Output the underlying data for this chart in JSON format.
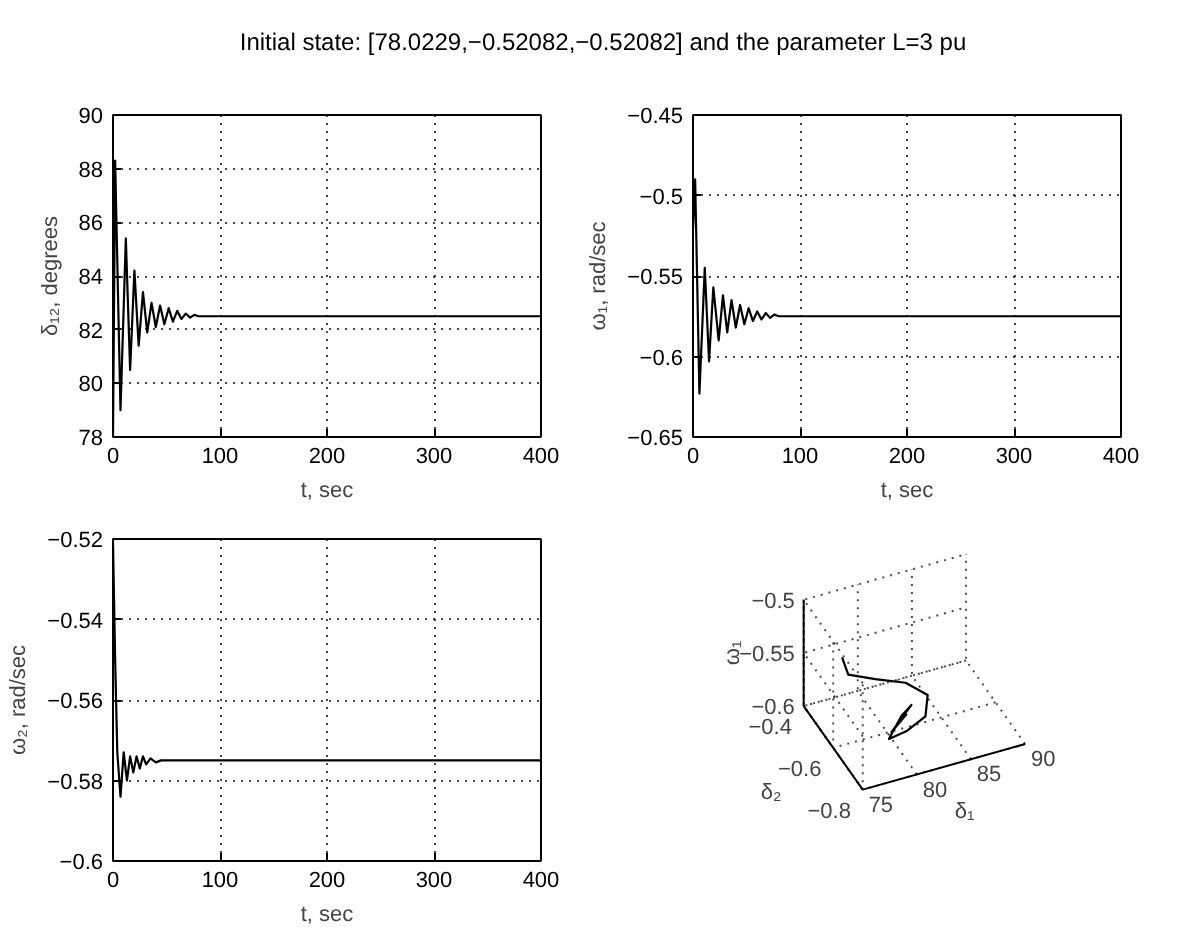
{
  "chart_data": [
    {
      "type": "line",
      "title": "Initial state: [78.0229,−0.52082,−0.52082] and the parameter L=3 pu",
      "xlabel": "t, sec",
      "ylabel": "δ₁₂, degrees",
      "xlim": [
        0,
        400
      ],
      "ylim": [
        78,
        90
      ],
      "xticks": [
        0,
        100,
        200,
        300,
        400
      ],
      "yticks": [
        78,
        80,
        82,
        84,
        86,
        88,
        90
      ],
      "grid": true,
      "series": [
        {
          "color": "#000000",
          "x": [
            0,
            2,
            7,
            12,
            16,
            20,
            24,
            28,
            32,
            36,
            40,
            44,
            48,
            52,
            56,
            60,
            64,
            68,
            72,
            76,
            80,
            90,
            400
          ],
          "values": [
            78.0,
            88.3,
            79.0,
            85.4,
            80.5,
            84.2,
            81.4,
            83.4,
            81.9,
            83.0,
            82.1,
            82.9,
            82.2,
            82.8,
            82.3,
            82.7,
            82.4,
            82.6,
            82.45,
            82.55,
            82.5,
            82.5,
            82.5
          ]
        }
      ]
    },
    {
      "type": "line",
      "xlabel": "t, sec",
      "ylabel": "ω₁, rad/sec",
      "xlim": [
        0,
        400
      ],
      "ylim": [
        -0.65,
        -0.45
      ],
      "xticks": [
        0,
        100,
        200,
        300,
        400
      ],
      "yticks": [
        {
          "value": -0.65,
          "label": "−0.65"
        },
        {
          "value": -0.6,
          "label": "−0.6"
        },
        {
          "value": -0.55,
          "label": "−0.55"
        },
        {
          "value": -0.5,
          "label": "−0.5"
        },
        {
          "value": -0.45,
          "label": "−0.45"
        }
      ],
      "grid": true,
      "series": [
        {
          "color": "#000000",
          "x": [
            0,
            2,
            6,
            11,
            15,
            19,
            24,
            28,
            32,
            36,
            40,
            44,
            48,
            52,
            56,
            60,
            64,
            68,
            72,
            76,
            80,
            90,
            400
          ],
          "values": [
            -0.521,
            -0.49,
            -0.623,
            -0.545,
            -0.603,
            -0.557,
            -0.59,
            -0.562,
            -0.585,
            -0.565,
            -0.582,
            -0.568,
            -0.58,
            -0.57,
            -0.578,
            -0.572,
            -0.577,
            -0.573,
            -0.576,
            -0.574,
            -0.575,
            -0.575,
            -0.575
          ]
        }
      ]
    },
    {
      "type": "line",
      "xlabel": "t, sec",
      "ylabel": "ω₂, rad/sec",
      "xlim": [
        0,
        400
      ],
      "ylim": [
        -0.6,
        -0.52
      ],
      "xticks": [
        0,
        100,
        200,
        300,
        400
      ],
      "yticks": [
        {
          "value": -0.6,
          "label": "−0.6"
        },
        {
          "value": -0.58,
          "label": "−0.58"
        },
        {
          "value": -0.56,
          "label": "−0.56"
        },
        {
          "value": -0.54,
          "label": "−0.54"
        },
        {
          "value": -0.52,
          "label": "−0.52"
        }
      ],
      "grid": true,
      "series": [
        {
          "color": "#000000",
          "x": [
            0,
            2,
            4,
            7,
            10,
            13,
            16,
            19,
            22,
            25,
            28,
            31,
            35,
            40,
            45,
            50,
            60,
            400
          ],
          "values": [
            -0.521,
            -0.55,
            -0.573,
            -0.584,
            -0.573,
            -0.58,
            -0.574,
            -0.578,
            -0.574,
            -0.577,
            -0.574,
            -0.576,
            -0.5745,
            -0.5755,
            -0.575,
            -0.575,
            -0.575,
            -0.575
          ]
        }
      ]
    },
    {
      "type": "other",
      "xlabel": "δ₁",
      "ylabel": "ω₁",
      "annotations": [
        "δ₂",
        "−0.4",
        "−0.6",
        "−0.8",
        "75",
        "80",
        "85",
        "90",
        "−0.6",
        "−0.55",
        "−0.5"
      ]
    }
  ]
}
